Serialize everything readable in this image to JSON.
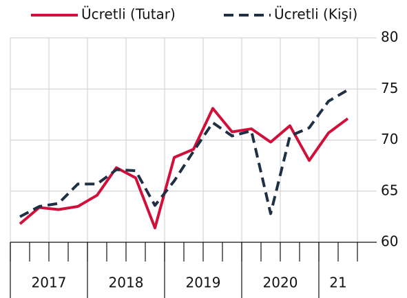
{
  "chart_data": {
    "type": "line",
    "categories": [
      null,
      null,
      null,
      null,
      null,
      null,
      null,
      null,
      null,
      null,
      null,
      null,
      null,
      null,
      null,
      null,
      null,
      null
    ],
    "x_groups": [
      {
        "label": "2017",
        "span": 4
      },
      {
        "label": "2018",
        "span": 4
      },
      {
        "label": "2019",
        "span": 4
      },
      {
        "label": "2020",
        "span": 4
      },
      {
        "label": "21",
        "span": 2
      }
    ],
    "series": [
      {
        "name": "Ücretli (Tutar)",
        "color": "#d0103a",
        "dash": false,
        "values": [
          61.8,
          63.4,
          63.2,
          63.5,
          64.6,
          67.3,
          66.3,
          61.4,
          68.3,
          69.1,
          73.1,
          70.8,
          71.1,
          69.8,
          71.4,
          68.0,
          70.7,
          72.1
        ]
      },
      {
        "name": "Ücretli (Kişi)",
        "color": "#1f3044",
        "dash": true,
        "values": [
          62.5,
          63.5,
          63.8,
          65.7,
          65.7,
          67.1,
          67.0,
          63.6,
          66.0,
          68.9,
          71.7,
          70.4,
          70.9,
          62.8,
          70.4,
          71.2,
          73.8,
          74.9
        ]
      }
    ],
    "ylim": [
      60,
      80
    ],
    "yticks": [
      60,
      65,
      70,
      75,
      80
    ],
    "grid": true,
    "legend": "top"
  }
}
